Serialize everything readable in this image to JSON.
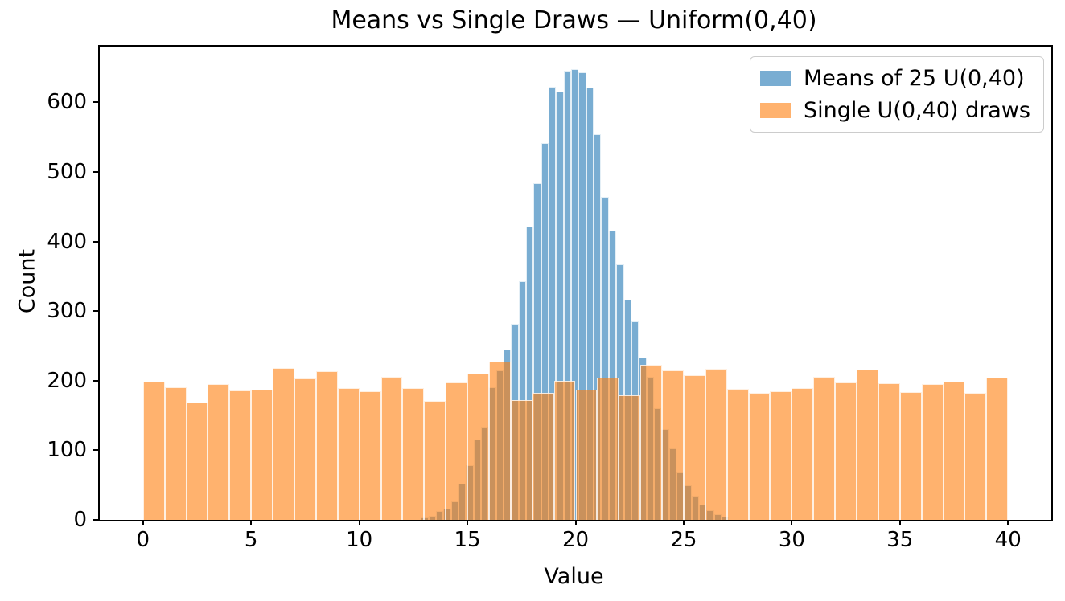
{
  "figure": {
    "title": "Means vs Single Draws — Uniform(0,40)"
  },
  "axes": {
    "xlabel": "Value",
    "ylabel": "Count"
  },
  "legend": {
    "position": "upper right",
    "items": [
      {
        "label": "Means of 25 U(0,40)",
        "color": "#1f77b4"
      },
      {
        "label": "Single U(0,40) draws",
        "color": "#ff7f0e"
      }
    ]
  },
  "chart_data": {
    "type": "bar",
    "subtype": "overlaid-histograms",
    "title": "Means vs Single Draws — Uniform(0,40)",
    "xlabel": "Value",
    "ylabel": "Count",
    "xlim": [
      -2,
      42
    ],
    "ylim": [
      0,
      680
    ],
    "x_ticks": [
      0,
      5,
      10,
      15,
      20,
      25,
      30,
      35,
      40
    ],
    "y_ticks": [
      0,
      100,
      200,
      300,
      400,
      500,
      600
    ],
    "grid": false,
    "legend_position": "upper right",
    "bar_alpha": 0.6,
    "background_color": "#ffffff",
    "series": [
      {
        "name": "Means of 25 U(0,40)",
        "color": "#1f77b4",
        "bin_start": 12.85,
        "bin_width": 0.3475,
        "counts": [
          4,
          6,
          13,
          16,
          26,
          52,
          79,
          115,
          133,
          190,
          215,
          245,
          282,
          343,
          421,
          484,
          541,
          622,
          615,
          645,
          648,
          643,
          621,
          554,
          464,
          416,
          367,
          316,
          285,
          233,
          205,
          160,
          130,
          103,
          68,
          50,
          35,
          22,
          14,
          8,
          5
        ]
      },
      {
        "name": "Single U(0,40) draws",
        "color": "#ff7f0e",
        "bin_start": 0,
        "bin_width": 1,
        "counts": [
          199,
          190,
          168,
          195,
          186,
          187,
          218,
          203,
          214,
          189,
          185,
          206,
          189,
          171,
          197,
          210,
          227,
          172,
          183,
          200,
          187,
          204,
          179,
          223,
          215,
          208,
          217,
          188,
          182,
          185,
          189,
          206,
          197,
          216,
          196,
          184,
          195,
          199,
          183,
          204
        ]
      }
    ]
  }
}
